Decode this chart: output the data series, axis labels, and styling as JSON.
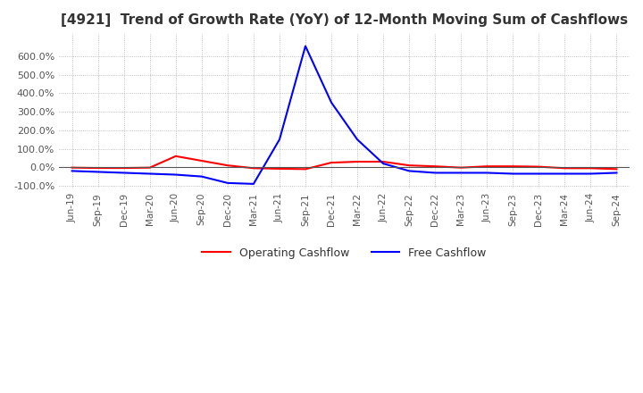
{
  "title": "[4921]  Trend of Growth Rate (YoY) of 12-Month Moving Sum of Cashflows",
  "title_fontsize": 11,
  "background_color": "#ffffff",
  "grid_color": "#aaaaaa",
  "xlabels": [
    "Jun-19",
    "Sep-19",
    "Dec-19",
    "Mar-20",
    "Jun-20",
    "Sep-20",
    "Dec-20",
    "Mar-21",
    "Jun-21",
    "Sep-21",
    "Dec-21",
    "Mar-22",
    "Jun-22",
    "Sep-22",
    "Dec-22",
    "Mar-23",
    "Jun-23",
    "Sep-23",
    "Dec-23",
    "Mar-24",
    "Jun-24",
    "Sep-24"
  ],
  "operating_cf": [
    -0.02,
    -0.04,
    -0.04,
    -0.02,
    0.6,
    0.35,
    0.1,
    -0.05,
    -0.08,
    -0.1,
    0.25,
    0.3,
    0.3,
    0.1,
    0.05,
    -0.02,
    0.05,
    0.05,
    0.03,
    -0.05,
    -0.05,
    -0.1
  ],
  "free_cf": [
    -0.2,
    -0.25,
    -0.3,
    -0.35,
    -0.4,
    -0.5,
    -0.85,
    -0.9,
    1.5,
    6.55,
    3.5,
    1.5,
    0.2,
    -0.2,
    -0.3,
    -0.3,
    -0.3,
    -0.35,
    -0.35,
    -0.35,
    -0.35,
    -0.3
  ],
  "ylim": [
    -1.15,
    7.2
  ],
  "yticks": [
    -1.0,
    0.0,
    1.0,
    2.0,
    3.0,
    4.0,
    5.0,
    6.0
  ],
  "ytick_labels": [
    "-100.0%",
    "0.0%",
    "100.0%",
    "200.0%",
    "300.0%",
    "400.0%",
    "500.0%",
    "600.0%"
  ],
  "operating_color": "#ff0000",
  "free_color": "#0000ff",
  "legend_labels": [
    "Operating Cashflow",
    "Free Cashflow"
  ]
}
